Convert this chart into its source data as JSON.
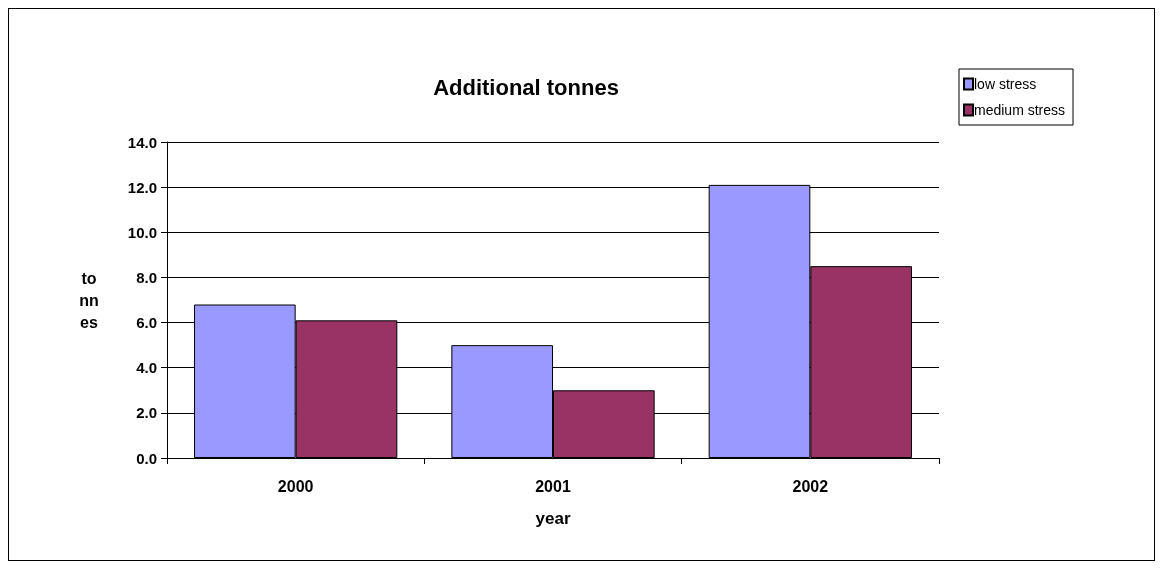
{
  "chart_data": {
    "type": "bar",
    "title": "Additional tonnes",
    "xlabel": "year",
    "ylabel": "tonnes",
    "categories": [
      "2000",
      "2001",
      "2002"
    ],
    "series": [
      {
        "name": "low stress",
        "color": "#9999ff",
        "values": [
          6.8,
          5.0,
          12.1
        ]
      },
      {
        "name": "medium stress",
        "color": "#993366",
        "values": [
          6.1,
          3.0,
          8.5
        ]
      }
    ],
    "ylim": [
      0,
      14
    ],
    "yticks": [
      {
        "value": 0,
        "label": "0.0"
      },
      {
        "value": 2,
        "label": "2.0"
      },
      {
        "value": 4,
        "label": "4.0"
      },
      {
        "value": 6,
        "label": "6.0"
      },
      {
        "value": 8,
        "label": "8.0"
      },
      {
        "value": 10,
        "label": "10.0"
      },
      {
        "value": 12,
        "label": "12.0"
      },
      {
        "value": 14,
        "label": "14.0"
      }
    ],
    "grid": "y",
    "legend": "top right"
  }
}
